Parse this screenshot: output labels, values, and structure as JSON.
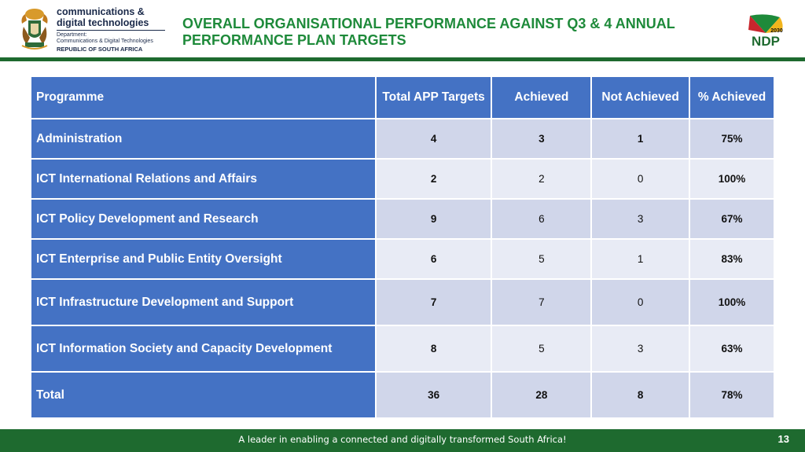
{
  "header": {
    "logo": {
      "name_line1": "communications &",
      "name_line2": "digital technologies",
      "dept_line1": "Department:",
      "dept_line2": "Communications & Digital Technologies",
      "country": "REPUBLIC OF SOUTH AFRICA"
    },
    "title": "OVERALL ORGANISATIONAL PERFORMANCE AGAINST Q3 & 4 ANNUAL PERFORMANCE PLAN TARGETS",
    "ndp_logo": {
      "year": "2030",
      "text": "NDP"
    }
  },
  "table": {
    "headers": {
      "programme": "Programme",
      "total_app_targets": "Total APP Targets",
      "achieved": "Achieved",
      "not_achieved": "Not Achieved",
      "pct_achieved": "% Achieved"
    },
    "rows": [
      {
        "programme": "Administration",
        "total": "4",
        "achieved": "3",
        "not_achieved": "1",
        "pct": "75%"
      },
      {
        "programme": "ICT International Relations and Affairs",
        "total": "2",
        "achieved": "2",
        "not_achieved": "0",
        "pct": "100%"
      },
      {
        "programme": "ICT Policy Development and Research",
        "total": "9",
        "achieved": "6",
        "not_achieved": "3",
        "pct": "67%"
      },
      {
        "programme": "ICT Enterprise and Public Entity Oversight",
        "total": "6",
        "achieved": "5",
        "not_achieved": "1",
        "pct": "83%"
      },
      {
        "programme": "ICT Infrastructure Development and Support",
        "total": "7",
        "achieved": "7",
        "not_achieved": "0",
        "pct": "100%"
      },
      {
        "programme": "ICT Information Society and Capacity Development",
        "total": "8",
        "achieved": "5",
        "not_achieved": "3",
        "pct": "63%"
      },
      {
        "programme": "Total",
        "total": "36",
        "achieved": "28",
        "not_achieved": "8",
        "pct": "78%"
      }
    ]
  },
  "footer": {
    "tagline": "A leader in enabling a connected and digitally transformed South Africa!",
    "page_number": "13"
  },
  "colors": {
    "brand_green": "#1e6a2f",
    "title_green": "#1e8a3a",
    "table_blue": "#4472c4",
    "row_shade_dark": "#d0d6ea",
    "row_shade_light": "#e8ebf5"
  }
}
